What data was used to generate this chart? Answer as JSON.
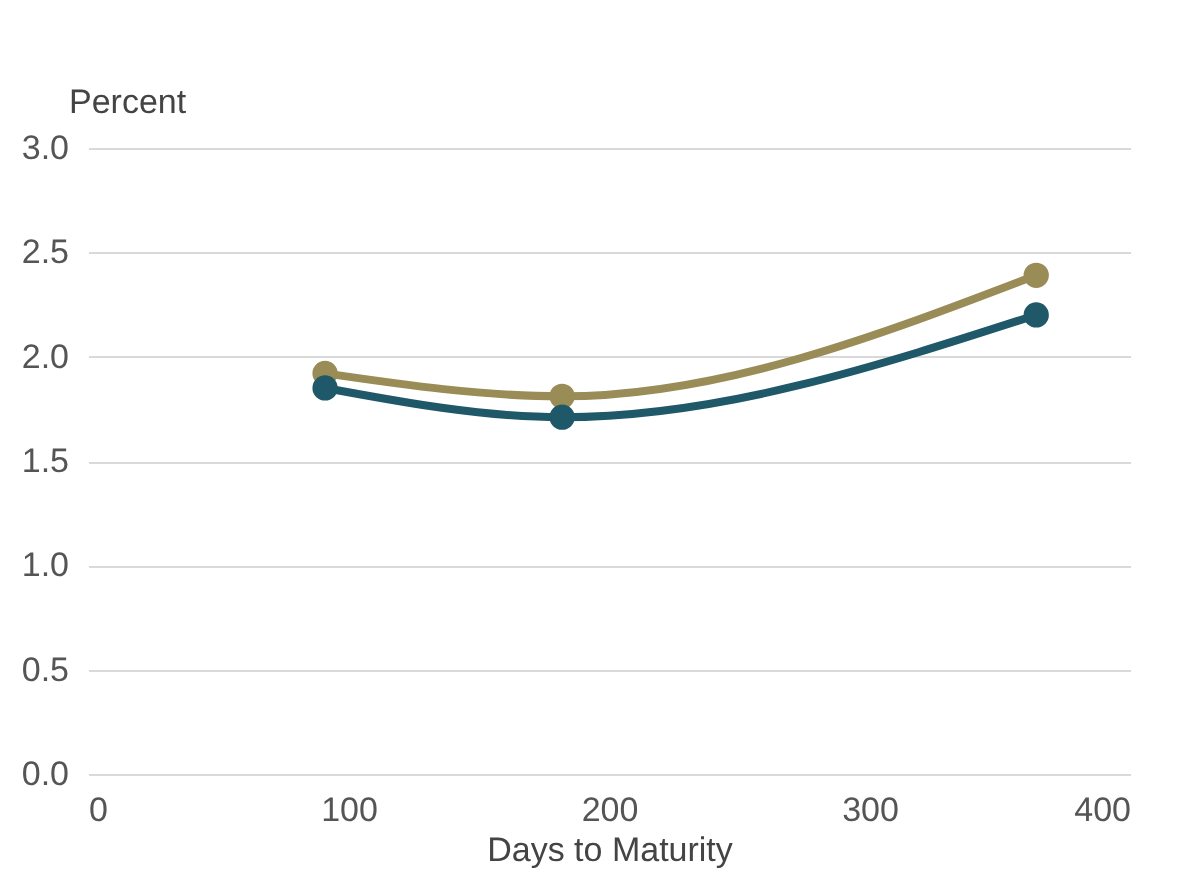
{
  "chart_data": {
    "type": "line",
    "xlabel": "Days to Maturity",
    "ylabel": "Percent",
    "x": [
      91,
      182,
      364
    ],
    "series": [
      {
        "color": "#9a8c56",
        "values": [
          1.92,
          1.81,
          2.39
        ]
      },
      {
        "color": "#1f5868",
        "values": [
          1.85,
          1.71,
          2.2
        ]
      }
    ],
    "xlim": [
      0,
      400
    ],
    "xticks": [
      0,
      100,
      200,
      300,
      400
    ],
    "ylim": [
      0,
      3.0
    ],
    "yticks": [
      {
        "value": 0,
        "label": "0.0"
      },
      {
        "value": 0.5,
        "label": "0.5"
      },
      {
        "value": 1,
        "label": "1.0"
      },
      {
        "value": 1.5,
        "label": "1.5"
      },
      {
        "value": 2,
        "label": "2.0"
      },
      {
        "value": 2.5,
        "label": "2.5"
      },
      {
        "value": 3,
        "label": "3.0"
      }
    ],
    "grid": "y",
    "marker": "circle",
    "line_style": "solid"
  }
}
